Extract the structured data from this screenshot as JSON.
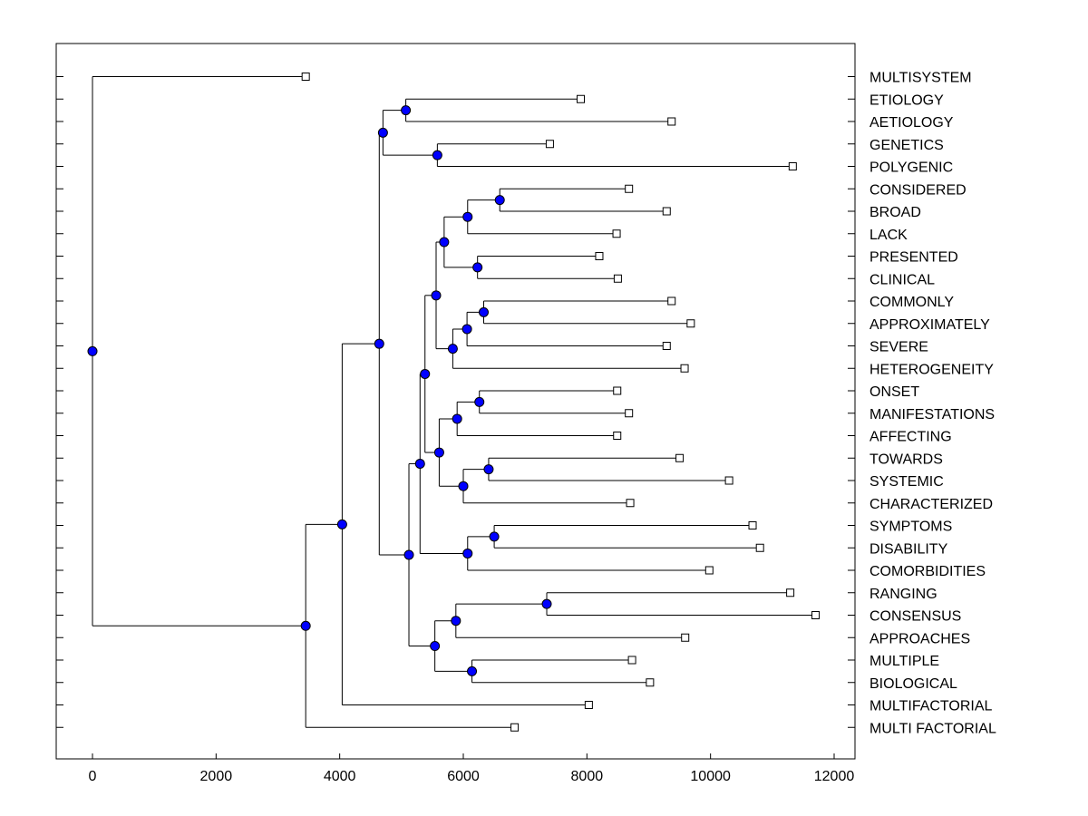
{
  "chart_data": {
    "type": "dendrogram",
    "orientation": "horizontal-leaves-right",
    "title": "",
    "xlabel": "",
    "ylabel": "",
    "xlim": [
      -600,
      12400
    ],
    "xticks": [
      0,
      2000,
      4000,
      6000,
      8000,
      10000,
      12000
    ],
    "colors": {
      "node": "#0000ff",
      "leaf_marker_fill": "#ffffff",
      "line": "#000000"
    },
    "leaves": [
      {
        "label": "MULTISYSTEM",
        "x": 3450
      },
      {
        "label": "ETIOLOGY",
        "x": 7900
      },
      {
        "label": "AETIOLOGY",
        "x": 9370
      },
      {
        "label": "GENETICS",
        "x": 7400
      },
      {
        "label": "POLYGENIC",
        "x": 11330
      },
      {
        "label": "CONSIDERED",
        "x": 8680
      },
      {
        "label": "BROAD",
        "x": 9290
      },
      {
        "label": "LACK",
        "x": 8480
      },
      {
        "label": "PRESENTED",
        "x": 8200
      },
      {
        "label": "CLINICAL",
        "x": 8500
      },
      {
        "label": "COMMONLY",
        "x": 9370
      },
      {
        "label": "APPROXIMATELY",
        "x": 9680
      },
      {
        "label": "SEVERE",
        "x": 9290
      },
      {
        "label": "HETEROGENEITY",
        "x": 9580
      },
      {
        "label": "ONSET",
        "x": 8490
      },
      {
        "label": "MANIFESTATIONS",
        "x": 8680
      },
      {
        "label": "AFFECTING",
        "x": 8490
      },
      {
        "label": "TOWARDS",
        "x": 9500
      },
      {
        "label": "SYSTEMIC",
        "x": 10300
      },
      {
        "label": "CHARACTERIZED",
        "x": 8700
      },
      {
        "label": "SYMPTOMS",
        "x": 10680
      },
      {
        "label": "DISABILITY",
        "x": 10800
      },
      {
        "label": "COMORBIDITIES",
        "x": 9980
      },
      {
        "label": "RANGING",
        "x": 11290
      },
      {
        "label": "CONSENSUS",
        "x": 11700
      },
      {
        "label": "APPROACHES",
        "x": 9590
      },
      {
        "label": "MULTIPLE",
        "x": 8730
      },
      {
        "label": "BIOLOGICAL",
        "x": 9020
      },
      {
        "label": "MULTIFACTORIAL",
        "x": 8030
      },
      {
        "label": "MULTI FACTORIAL",
        "x": 6830
      }
    ],
    "merges": [
      {
        "id": "n1",
        "x": 5070,
        "children": [
          1,
          2
        ]
      },
      {
        "id": "n2",
        "x": 5580,
        "children": [
          3,
          4
        ]
      },
      {
        "id": "n3",
        "x": 4700,
        "children": [
          "n1",
          "n2"
        ]
      },
      {
        "id": "n4",
        "x": 6590,
        "children": [
          5,
          6
        ]
      },
      {
        "id": "n5",
        "x": 6070,
        "children": [
          "n4",
          7
        ]
      },
      {
        "id": "n6",
        "x": 6230,
        "children": [
          8,
          9
        ]
      },
      {
        "id": "n7",
        "x": 5690,
        "children": [
          "n5",
          "n6"
        ]
      },
      {
        "id": "n8",
        "x": 6330,
        "children": [
          10,
          11
        ]
      },
      {
        "id": "n9",
        "x": 6060,
        "children": [
          "n8",
          12
        ]
      },
      {
        "id": "n10",
        "x": 5830,
        "children": [
          "n9",
          13
        ]
      },
      {
        "id": "n11",
        "x": 5560,
        "children": [
          "n7",
          "n10"
        ]
      },
      {
        "id": "n12",
        "x": 6260,
        "children": [
          14,
          15
        ]
      },
      {
        "id": "n13",
        "x": 5900,
        "children": [
          "n12",
          16
        ]
      },
      {
        "id": "n14",
        "x": 6410,
        "children": [
          17,
          18
        ]
      },
      {
        "id": "n15",
        "x": 6000,
        "children": [
          "n14",
          19
        ]
      },
      {
        "id": "n16",
        "x": 5610,
        "children": [
          "n13",
          "n15"
        ]
      },
      {
        "id": "n17",
        "x": 5380,
        "children": [
          "n11",
          "n16"
        ]
      },
      {
        "id": "n18",
        "x": 6500,
        "children": [
          20,
          21
        ]
      },
      {
        "id": "n19",
        "x": 6070,
        "children": [
          "n18",
          22
        ]
      },
      {
        "id": "n20",
        "x": 5300,
        "children": [
          "n17",
          "n19"
        ]
      },
      {
        "id": "n21",
        "x": 7350,
        "children": [
          23,
          24
        ]
      },
      {
        "id": "n22",
        "x": 5880,
        "children": [
          "n21",
          25
        ]
      },
      {
        "id": "n23",
        "x": 6140,
        "children": [
          26,
          27
        ]
      },
      {
        "id": "n24",
        "x": 5540,
        "children": [
          "n22",
          "n23"
        ]
      },
      {
        "id": "n25",
        "x": 5120,
        "children": [
          "n20",
          "n24"
        ]
      },
      {
        "id": "n26",
        "x": 4640,
        "children": [
          "n3",
          "n25"
        ]
      },
      {
        "id": "n27",
        "x": 4040,
        "children": [
          "n26",
          28
        ]
      },
      {
        "id": "n28",
        "x": 3450,
        "children": [
          "n27",
          29
        ]
      },
      {
        "id": "n29",
        "x": 0,
        "children": [
          0,
          "n28"
        ]
      }
    ]
  }
}
